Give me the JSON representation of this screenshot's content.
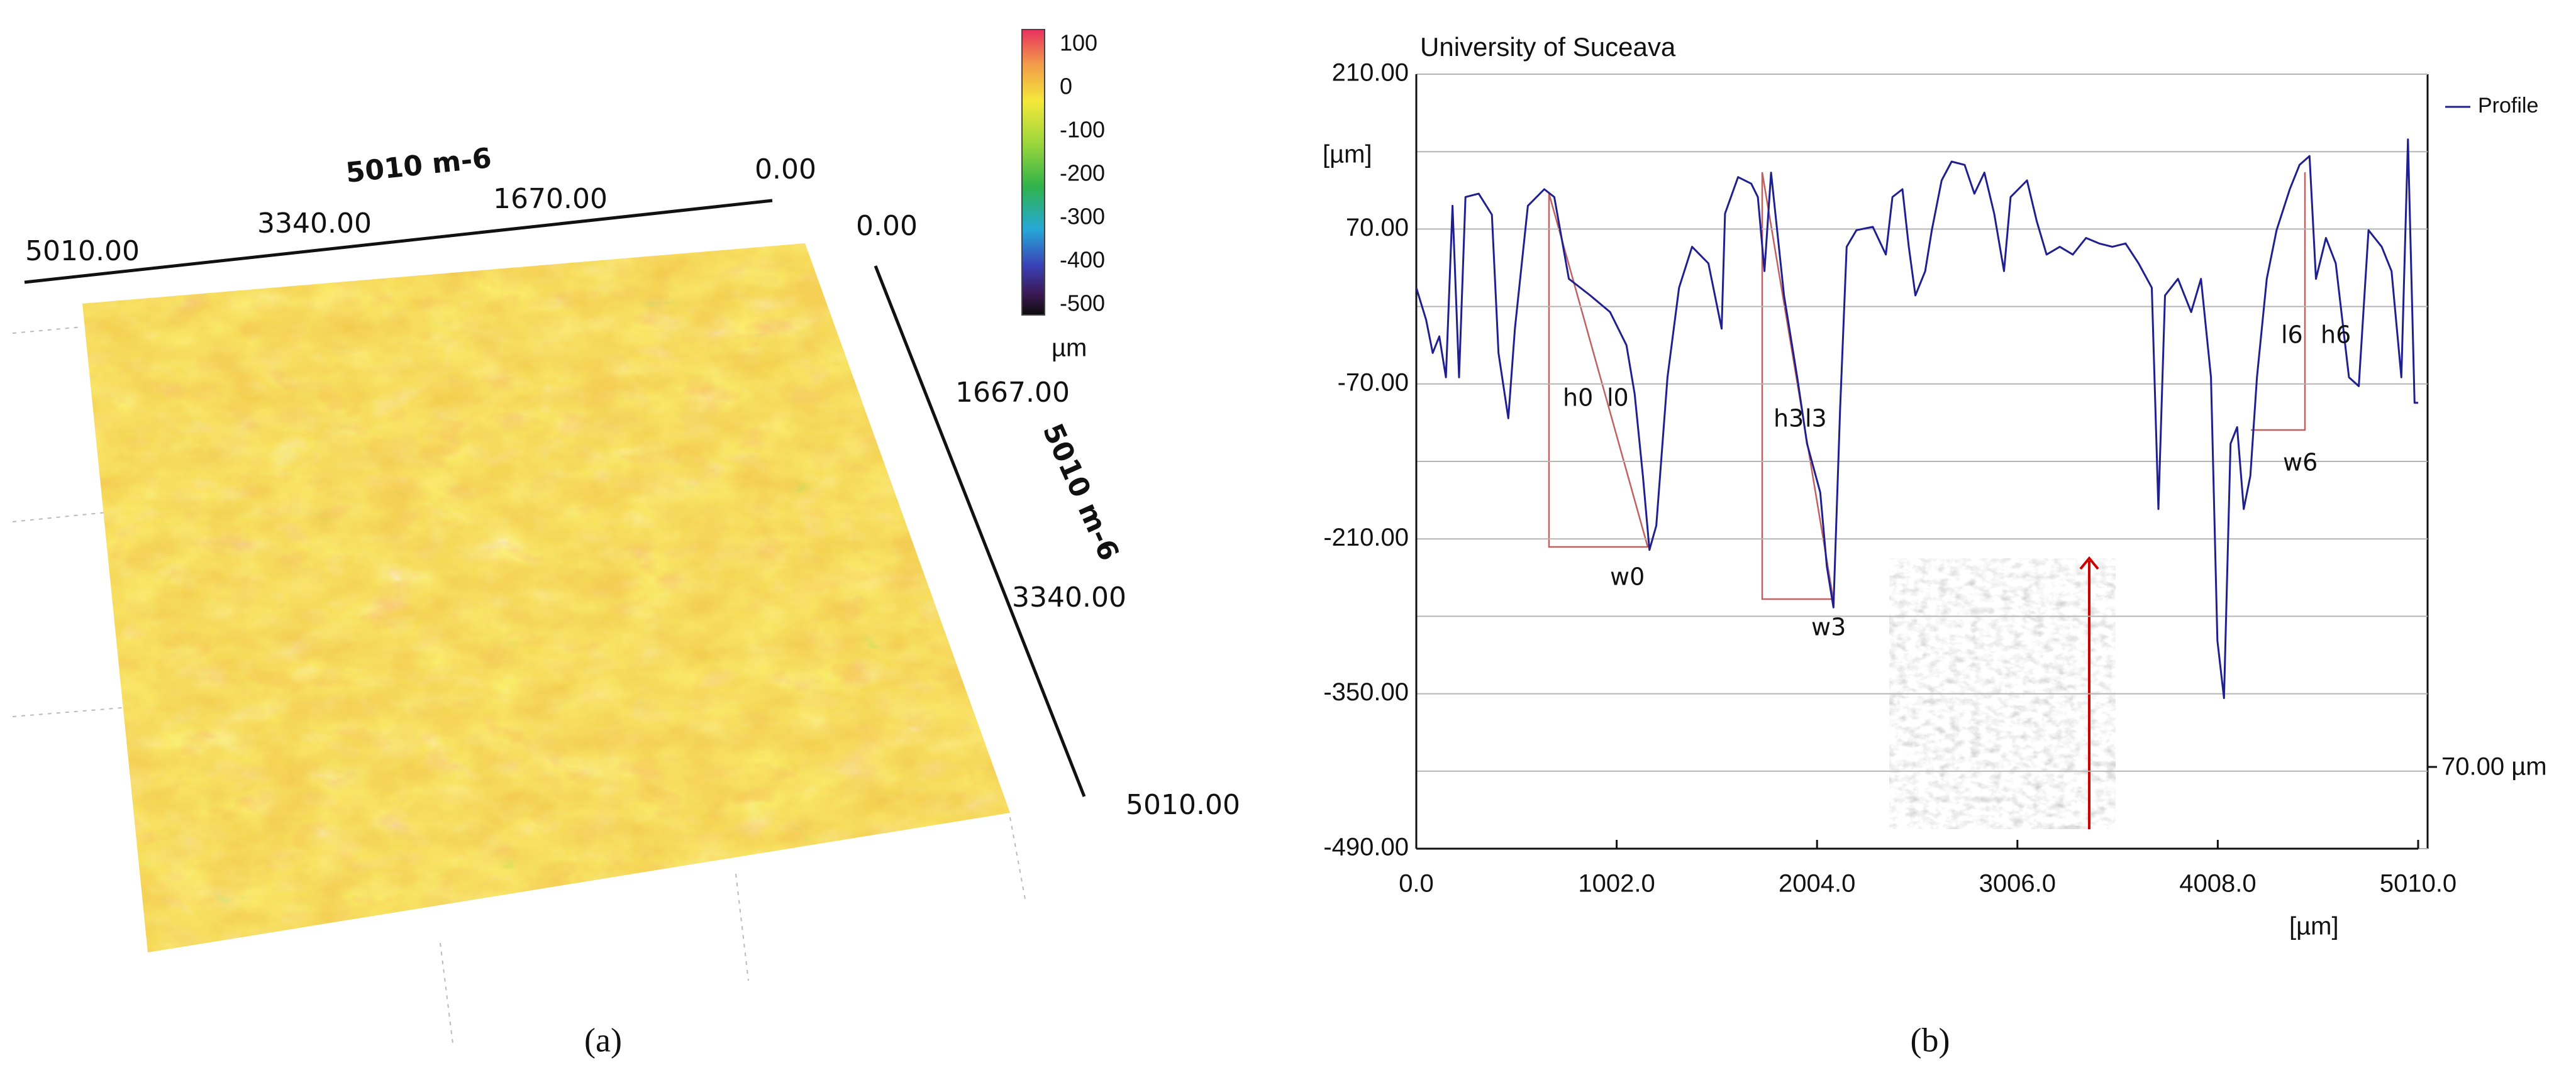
{
  "surface_panel": {
    "top_axis_title": "5010 m-6",
    "top_axis_labels": [
      "5010.00",
      "3340.00",
      "1670.00",
      "0.00"
    ],
    "side_axis_title": "5010 m-6",
    "side_axis_labels": [
      "0.00",
      "1667.00",
      "3340.00",
      "5010.00"
    ],
    "colorbar_ticks": [
      100,
      0,
      -100,
      -200,
      -300,
      -400,
      -500
    ],
    "colorbar_unit": "µm"
  },
  "chart_data": {
    "type": "line",
    "title": "University of Suceava",
    "y_label": "[µm]",
    "x_label": "[µm]",
    "x": [
      0,
      49,
      82,
      115,
      148,
      181,
      214,
      246,
      312,
      378,
      411,
      460,
      493,
      558,
      640,
      690,
      763,
      870,
      969,
      1051,
      1092,
      1133,
      1166,
      1200,
      1256,
      1314,
      1379,
      1461,
      1527,
      1544,
      1609,
      1675,
      1708,
      1741,
      1774,
      1839,
      1905,
      1954,
      2020,
      2053,
      2086,
      2119,
      2152,
      2201,
      2283,
      2348,
      2381,
      2431,
      2463,
      2496,
      2545,
      2578,
      2627,
      2677,
      2742,
      2791,
      2841,
      2890,
      2939,
      2972,
      3054,
      3103,
      3152,
      3218,
      3283,
      3349,
      3415,
      3481,
      3547,
      3612,
      3678,
      3711,
      3744,
      3809,
      3875,
      3924,
      3974,
      4006,
      4039,
      4072,
      4105,
      4138,
      4171,
      4204,
      4253,
      4302,
      4368,
      4417,
      4467,
      4499,
      4549,
      4598,
      4664,
      4713,
      4762,
      4828,
      4877,
      4926,
      4959,
      4992,
      5010
    ],
    "series": [
      {
        "name": "Profile",
        "color": "#1f1f8f",
        "values": [
          17,
          -12,
          -42,
          -27,
          -64,
          91,
          -64,
          99,
          102,
          83,
          -42,
          -101,
          -20,
          91,
          106,
          99,
          25,
          10,
          -5,
          -35,
          -79,
          -153,
          -220,
          -198,
          -64,
          17,
          54,
          39,
          -20,
          84,
          117,
          111,
          99,
          32,
          121,
          10,
          -64,
          -124,
          -168,
          -235,
          -272,
          -94,
          54,
          69,
          72,
          47,
          99,
          106,
          54,
          10,
          32,
          69,
          114,
          131,
          128,
          102,
          121,
          84,
          32,
          99,
          114,
          77,
          47,
          54,
          47,
          62,
          57,
          54,
          57,
          39,
          17,
          -183,
          10,
          25,
          -5,
          25,
          -64,
          -302,
          -354,
          -124,
          -109,
          -183,
          -153,
          -64,
          25,
          69,
          106,
          128,
          136,
          25,
          62,
          39,
          -64,
          -72,
          69,
          54,
          32,
          -64,
          151,
          -87,
          -87
        ]
      }
    ],
    "xlim": [
      0,
      5010
    ],
    "xticks": [
      {
        "value": 0,
        "label": "0.0"
      },
      {
        "value": 1002,
        "label": "1002.0"
      },
      {
        "value": 2004,
        "label": "2004.0"
      },
      {
        "value": 3006,
        "label": "3006.0"
      },
      {
        "value": 4008,
        "label": "4008.0"
      },
      {
        "value": 5010,
        "label": "5010.0"
      }
    ],
    "ylim": [
      -490,
      210
    ],
    "yticks": [
      {
        "value": 210,
        "label": "210.00"
      },
      {
        "value": 70,
        "label": "70.00"
      },
      {
        "value": -70,
        "label": "-70.00"
      },
      {
        "value": -210,
        "label": "-210.00"
      },
      {
        "value": -350,
        "label": "-350.00"
      },
      {
        "value": -490,
        "label": "-490.00"
      }
    ],
    "ygrid": [
      140,
      0,
      -140,
      -280,
      -420
    ],
    "grid": true,
    "legend": "upper right",
    "annotations": [
      "h0",
      "l0",
      "w0",
      "h3",
      "l3",
      "w3",
      "l6",
      "h6",
      "w6"
    ],
    "scale_bar_label": "70.00 µm"
  },
  "captions": [
    "(a)",
    "(b)"
  ]
}
